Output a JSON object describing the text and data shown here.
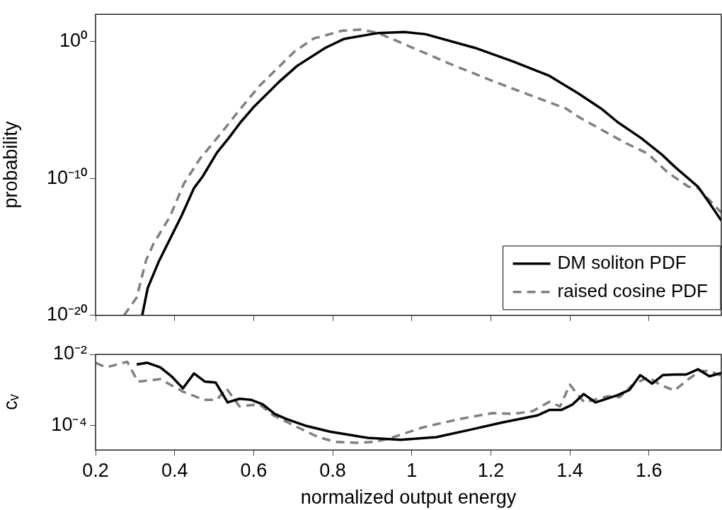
{
  "chart_data": [
    {
      "type": "line",
      "ylabel": "probability",
      "log": "y",
      "xticks": [
        0.2,
        0.4,
        0.6,
        0.8,
        1,
        1.2,
        1.4,
        1.6
      ],
      "ylim": [
        1e-20,
        100
      ],
      "yticks": [
        {
          "value": 1,
          "label": "10⁰"
        },
        {
          "value": 1e-10,
          "label": "10⁻¹⁰"
        },
        {
          "value": 1e-20,
          "label": "10⁻²⁰"
        }
      ],
      "tick_labels": "y",
      "grid": false,
      "legend": "bottom right",
      "marker": "none",
      "xlim": [
        0.2,
        1.783
      ],
      "series": [
        {
          "name": "DM soliton PDF",
          "color": "#000000",
          "line_style": "solid",
          "x": [
            0.318,
            0.332,
            0.361,
            0.418,
            0.449,
            0.471,
            0.507,
            0.537,
            0.567,
            0.602,
            0.662,
            0.71,
            0.781,
            0.829,
            0.889,
            0.915,
            0.981,
            1.035,
            1.16,
            1.255,
            1.348,
            1.419,
            1.479,
            1.521,
            1.58,
            1.634,
            1.667,
            1.724,
            1.753,
            1.783
          ],
          "values": [
            1e-20,
            1e-18,
            1e-16,
            2e-13,
            2e-11,
            1.4e-10,
            7.6e-09,
            9.1e-08,
            1.3e-06,
            1.9e-05,
            0.001,
            0.017,
            0.35,
            1.6,
            3.2,
            4.3,
            5.1,
            3.5,
            0.35,
            0.037,
            0.0032,
            0.00018,
            1.3e-05,
            1.3e-06,
            9.1e-08,
            5.2e-09,
            6.5e-10,
            2.5e-11,
            1.6e-12,
            8.5e-14
          ]
        },
        {
          "name": "raised cosine PDF",
          "color": "#808080",
          "line_style": "dashed",
          "x": [
            0.272,
            0.304,
            0.328,
            0.346,
            0.388,
            0.424,
            0.465,
            0.519,
            0.567,
            0.614,
            0.704,
            0.752,
            0.823,
            0.871,
            0.915,
            0.957,
            1.109,
            1.223,
            1.39,
            1.425,
            1.539,
            1.598,
            1.646,
            1.7,
            1.724,
            1.783
          ],
          "values": [
            1e-20,
            2e-19,
            1.1e-16,
            1.6e-15,
            1.6e-13,
            4.5e-11,
            3e-09,
            2.3e-07,
            1.3e-05,
            0.00056,
            0.2,
            1.7,
            6.2,
            7.6,
            4.3,
            1.3,
            0.017,
            0.00083,
            1.3e-05,
            2.8e-06,
            4.2e-08,
            6.3e-09,
            3e-10,
            2.5e-11,
            2.1e-11,
            3.2e-13
          ]
        }
      ]
    },
    {
      "type": "line",
      "xlabel": "normalized output energy",
      "ylabel": "cᵥ",
      "log": "y",
      "xlim": [
        0.2,
        1.783
      ],
      "xticks": [
        0.2,
        0.4,
        0.6,
        0.8,
        1,
        1.2,
        1.4,
        1.6
      ],
      "ylim": [
        2e-05,
        0.01
      ],
      "yticks": [
        {
          "value": 0.01,
          "label": "10⁻²"
        },
        {
          "value": 0.0001,
          "label": "10⁻⁴"
        }
      ],
      "grid": false,
      "marker": "none",
      "series": [
        {
          "color": "#000000",
          "line_style": "solid",
          "x": [
            0.304,
            0.331,
            0.364,
            0.394,
            0.421,
            0.449,
            0.477,
            0.504,
            0.534,
            0.564,
            0.594,
            0.623,
            0.653,
            0.683,
            0.734,
            0.793,
            0.853,
            0.889,
            0.972,
            1.062,
            1.151,
            1.229,
            1.318,
            1.348,
            1.378,
            1.406,
            1.435,
            1.465,
            1.521,
            1.551,
            1.578,
            1.608,
            1.635,
            1.664,
            1.694,
            1.724,
            1.753,
            1.783
          ],
          "values": [
            0.0052,
            0.0058,
            0.0043,
            0.0023,
            0.0011,
            0.0029,
            0.0017,
            0.0016,
            0.00044,
            0.00056,
            0.00052,
            0.00039,
            0.00021,
            0.00015,
            9.5e-05,
            6.6e-05,
            5.1e-05,
            4.4e-05,
            3.9e-05,
            4.6e-05,
            7.6e-05,
            0.00012,
            0.00019,
            0.00027,
            0.00027,
            0.00038,
            0.00076,
            0.00044,
            0.00071,
            0.001,
            0.0026,
            0.0015,
            0.0026,
            0.0027,
            0.0027,
            0.0038,
            0.0024,
            0.003
          ]
        },
        {
          "color": "#808080",
          "line_style": "dashed",
          "x": [
            0.2,
            0.227,
            0.28,
            0.307,
            0.364,
            0.421,
            0.475,
            0.507,
            0.531,
            0.564,
            0.614,
            0.65,
            0.71,
            0.764,
            0.806,
            0.86,
            0.907,
            0.942,
            1.031,
            1.121,
            1.204,
            1.258,
            1.306,
            1.348,
            1.375,
            1.4,
            1.425,
            1.437,
            1.496,
            1.526,
            1.556,
            1.598,
            1.628,
            1.664,
            1.7,
            1.73,
            1.753,
            1.783
          ],
          "values": [
            0.0058,
            0.0043,
            0.0062,
            0.0017,
            0.002,
            0.00089,
            0.00052,
            0.00052,
            0.0011,
            0.00034,
            0.00039,
            0.00019,
            8.9e-05,
            4.6e-05,
            3.4e-05,
            3.2e-05,
            3.4e-05,
            4.2e-05,
            8.9e-05,
            0.00015,
            0.00022,
            0.00021,
            0.00025,
            0.00046,
            0.00034,
            0.0014,
            0.00062,
            0.00044,
            0.00066,
            0.00062,
            0.0013,
            0.0023,
            0.0014,
            0.00095,
            0.002,
            0.0034,
            0.0034,
            0.0025
          ]
        }
      ]
    }
  ]
}
